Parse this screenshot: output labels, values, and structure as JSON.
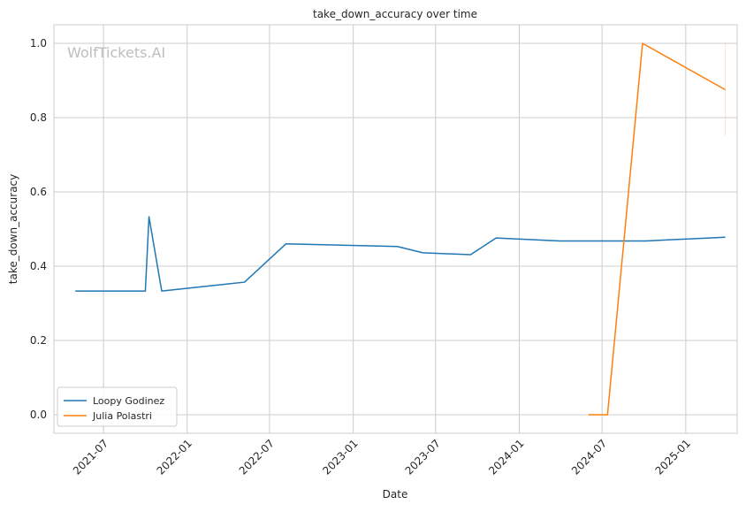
{
  "chart_data": {
    "type": "line",
    "title": "take_down_accuracy over time",
    "xlabel": "Date",
    "ylabel": "take_down_accuracy",
    "watermark": "WolfTickets.AI",
    "xlim": [
      "2021-03-14",
      "2025-04-24"
    ],
    "ylim": [
      -0.05,
      1.05
    ],
    "x_ticks": [
      "2021-07-01",
      "2022-01-01",
      "2022-07-01",
      "2023-01-01",
      "2023-07-01",
      "2024-01-01",
      "2024-07-01",
      "2025-01-01"
    ],
    "x_tick_labels": [
      "2021-07",
      "2022-01",
      "2022-07",
      "2023-01",
      "2023-07",
      "2024-01",
      "2024-07",
      "2025-01"
    ],
    "y_ticks": [
      0.0,
      0.2,
      0.4,
      0.6,
      0.8,
      1.0
    ],
    "y_tick_labels": [
      "0.0",
      "0.2",
      "0.4",
      "0.6",
      "0.8",
      "1.0"
    ],
    "grid": true,
    "legend_position": "lower-left",
    "series": [
      {
        "name": "Loopy Godinez",
        "color": "#1f77b4",
        "points": [
          {
            "x": "2021-04-30",
            "y": 0.333
          },
          {
            "x": "2021-10-01",
            "y": 0.333
          },
          {
            "x": "2021-10-09",
            "y": 0.533
          },
          {
            "x": "2021-11-06",
            "y": 0.333
          },
          {
            "x": "2022-05-07",
            "y": 0.357
          },
          {
            "x": "2022-08-06",
            "y": 0.46
          },
          {
            "x": "2023-04-08",
            "y": 0.453
          },
          {
            "x": "2023-06-03",
            "y": 0.436
          },
          {
            "x": "2023-09-16",
            "y": 0.431
          },
          {
            "x": "2023-11-11",
            "y": 0.476
          },
          {
            "x": "2024-03-30",
            "y": 0.468
          },
          {
            "x": "2024-10-05",
            "y": 0.468
          },
          {
            "x": "2025-03-29",
            "y": 0.478
          }
        ]
      },
      {
        "name": "Julia Polastri",
        "color": "#ff7f0e",
        "points": [
          {
            "x": "2024-06-01",
            "y": 0.0
          },
          {
            "x": "2024-07-13",
            "y": 0.0
          },
          {
            "x": "2024-09-28",
            "y": 1.0
          },
          {
            "x": "2025-03-29",
            "y": 0.875
          }
        ],
        "error_bars": [
          {
            "x": "2025-03-29",
            "low": 0.75,
            "high": 1.0
          }
        ]
      }
    ]
  }
}
